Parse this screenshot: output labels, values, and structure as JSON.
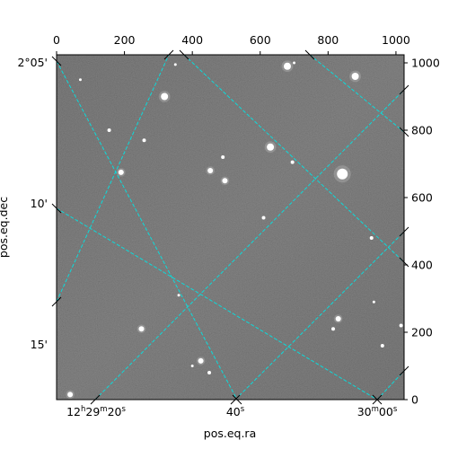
{
  "chart_data": {
    "type": "image",
    "xlabel": "pos.eq.ra",
    "ylabel": "pos.eq.dec",
    "pixel_axes": {
      "x_ticks": [
        "0",
        "200",
        "400",
        "600",
        "800",
        "1000"
      ],
      "y_ticks": [
        "0",
        "200",
        "400",
        "600",
        "800",
        "1000"
      ],
      "x_range": [
        0,
        1024
      ],
      "y_range": [
        0,
        1024
      ]
    },
    "world_axes": {
      "ra_ticks": [
        {
          "label": "12h29m20s",
          "hours": "12",
          "hours_sup": "h",
          "minutes": "29",
          "minutes_sup": "m",
          "seconds": "20",
          "seconds_sup": "s"
        },
        {
          "label": "40s",
          "seconds": "40",
          "seconds_sup": "s"
        },
        {
          "label": "30m00s",
          "minutes": "30",
          "minutes_sup": "m",
          "seconds": "00",
          "seconds_sup": "s"
        }
      ],
      "dec_ticks": [
        "2°05'",
        "10'",
        "15'"
      ]
    },
    "grid": true,
    "grid_color": "#00e5e5",
    "image_colormap": "gray",
    "sources": [
      {
        "x": 680,
        "y": 990,
        "r": 4
      },
      {
        "x": 880,
        "y": 960,
        "r": 4
      },
      {
        "x": 318,
        "y": 900,
        "r": 4
      },
      {
        "x": 630,
        "y": 750,
        "r": 4
      },
      {
        "x": 842,
        "y": 670,
        "r": 6
      },
      {
        "x": 453,
        "y": 680,
        "r": 3
      },
      {
        "x": 496,
        "y": 650,
        "r": 3
      },
      {
        "x": 190,
        "y": 675,
        "r": 3
      },
      {
        "x": 490,
        "y": 720,
        "r": 2
      },
      {
        "x": 258,
        "y": 770,
        "r": 2
      },
      {
        "x": 695,
        "y": 705,
        "r": 2
      },
      {
        "x": 610,
        "y": 540,
        "r": 2
      },
      {
        "x": 928,
        "y": 480,
        "r": 2
      },
      {
        "x": 250,
        "y": 210,
        "r": 3
      },
      {
        "x": 830,
        "y": 240,
        "r": 3
      },
      {
        "x": 815,
        "y": 210,
        "r": 2
      },
      {
        "x": 425,
        "y": 115,
        "r": 3
      },
      {
        "x": 450,
        "y": 80,
        "r": 2
      },
      {
        "x": 40,
        "y": 15,
        "r": 3
      },
      {
        "x": 960,
        "y": 160,
        "r": 2
      },
      {
        "x": 1015,
        "y": 220,
        "r": 2
      },
      {
        "x": 360,
        "y": 310,
        "r": 1.5
      },
      {
        "x": 155,
        "y": 800,
        "r": 2
      },
      {
        "x": 70,
        "y": 950,
        "r": 1.5
      },
      {
        "x": 350,
        "y": 995,
        "r": 1.5
      },
      {
        "x": 400,
        "y": 100,
        "r": 1.5
      },
      {
        "x": 700,
        "y": 1000,
        "r": 1.5
      },
      {
        "x": 935,
        "y": 290,
        "r": 1.5
      }
    ]
  }
}
